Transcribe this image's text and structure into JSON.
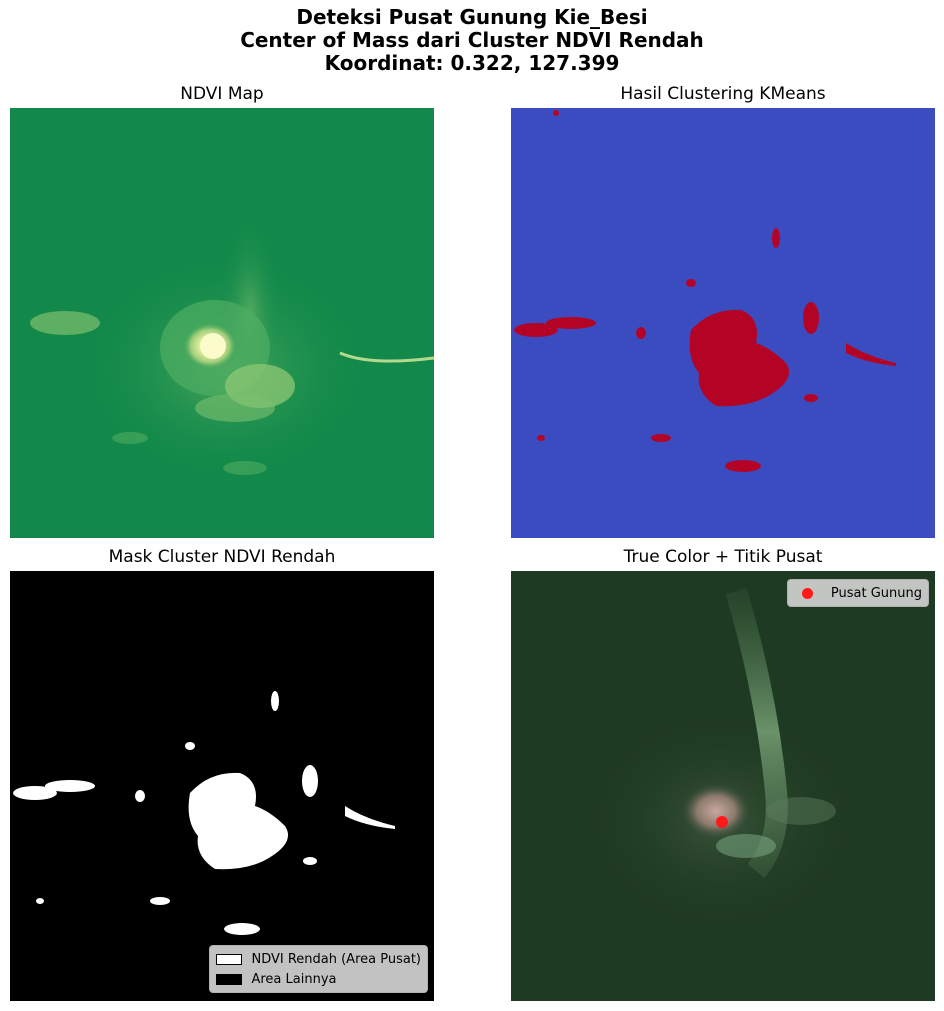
{
  "suptitle": {
    "line1": "Deteksi Pusat Gunung Kie_Besi",
    "line2": "Center of Mass dari Cluster NDVI Rendah",
    "line3": "Koordinat: 0.322, 127.399"
  },
  "panels": {
    "ndvi": {
      "title": "NDVI Map"
    },
    "cluster": {
      "title": "Hasil Clustering KMeans"
    },
    "mask": {
      "title": "Mask Cluster NDVI Rendah",
      "legend": {
        "low": "NDVI Rendah (Area Pusat)",
        "other": "Area Lainnya"
      }
    },
    "truecolor": {
      "title": "True Color + Titik Pusat",
      "legend": {
        "center": "Pusat Gunung"
      },
      "marker_color": "#ff1a1a"
    }
  },
  "colors": {
    "ndvi_high": "#0f8a48",
    "ndvi_low": "#f5f5a0",
    "cluster_background": "#3b4cc0",
    "cluster_low": "#b40426",
    "mask_low": "#ffffff",
    "mask_other": "#000000",
    "forest": "#1f3a22"
  }
}
